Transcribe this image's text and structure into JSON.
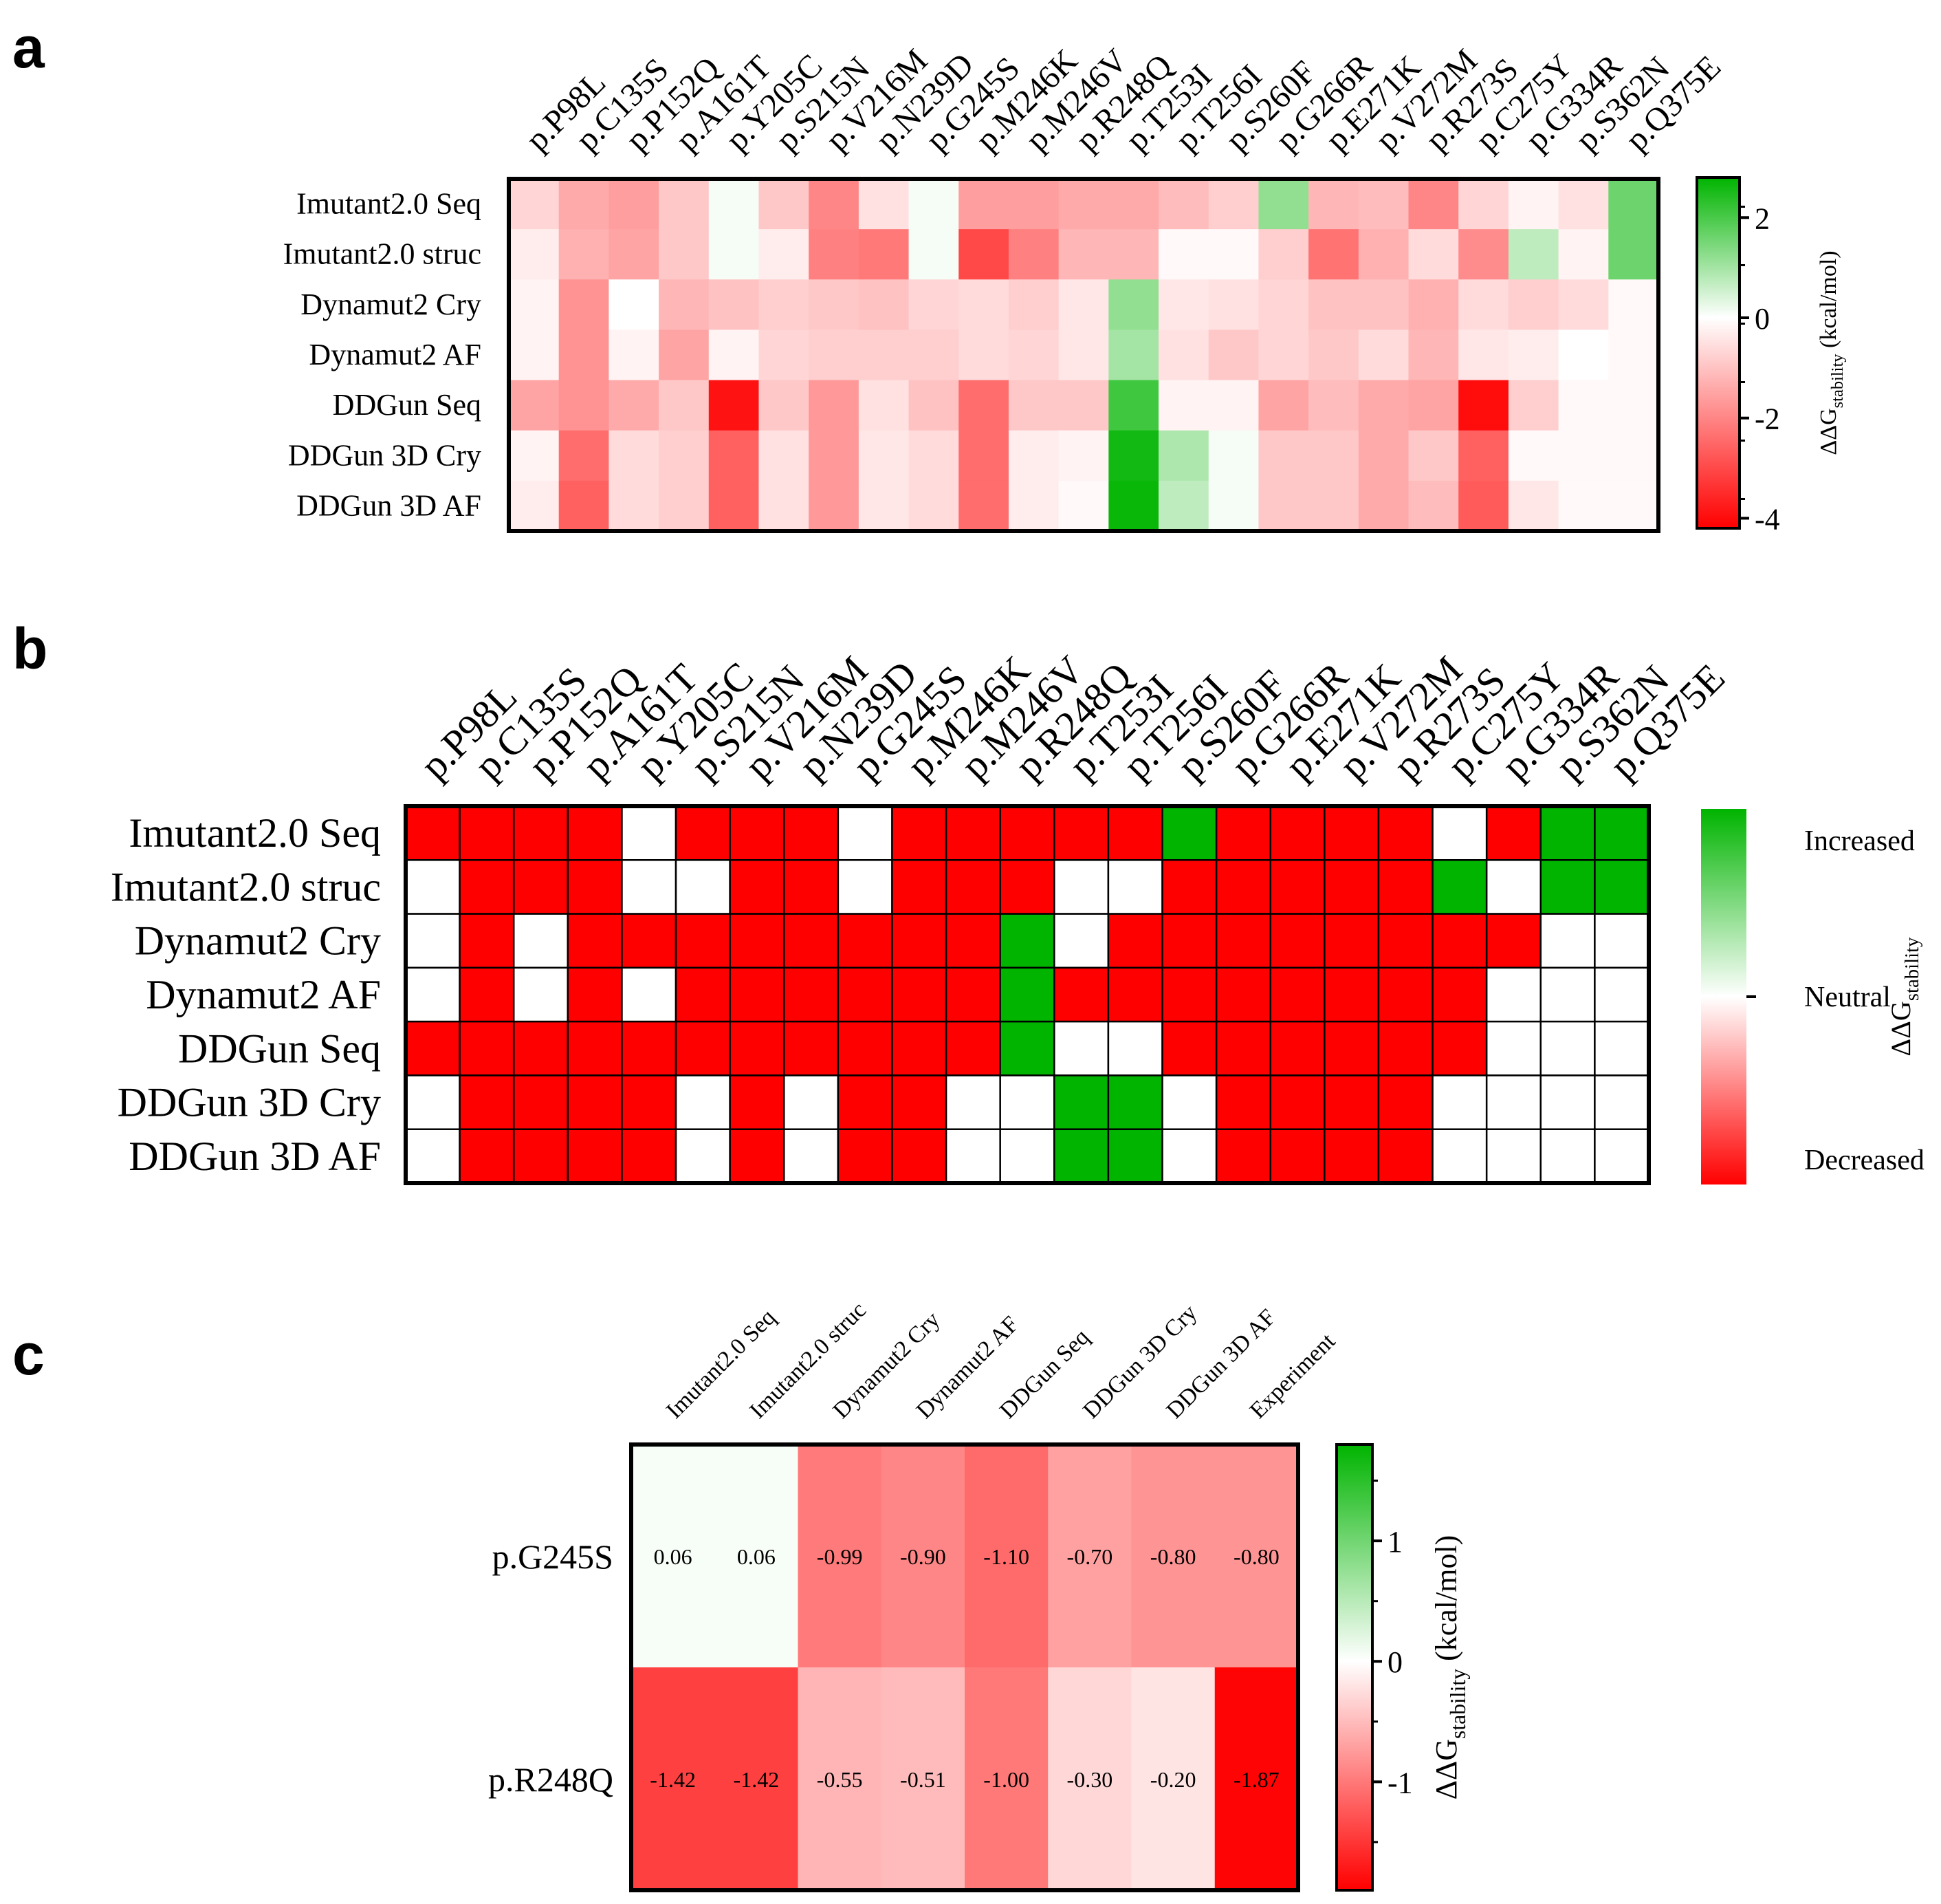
{
  "chart_data": [
    {
      "type": "heatmap",
      "panel": "a",
      "x_categories": [
        "p.P98L",
        "p.C135S",
        "p.P152Q",
        "p.A161T",
        "p.Y205C",
        "p.S215N",
        "p.V216M",
        "p.N239D",
        "p.G245S",
        "p.M246K",
        "p.M246V",
        "p.R248Q",
        "p.T253I",
        "p.T256I",
        "p.S260F",
        "p.G266R",
        "p.E271K",
        "p.V272M",
        "p.R273S",
        "p.C275Y",
        "p.G334R",
        "p.S362N",
        "p.Q375E"
      ],
      "y_categories": [
        "Imutant2.0 Seq",
        "Imutant2.0 struc",
        "Dynamut2 Cry",
        "Dynamut2 AF",
        "DDGun Seq",
        "DDGun 3D Cry",
        "DDGun 3D AF"
      ],
      "values": [
        [
          -0.7,
          -1.4,
          -1.6,
          -0.9,
          0.1,
          -0.9,
          -2.0,
          -0.5,
          0.1,
          -1.6,
          -1.6,
          -1.4,
          -1.4,
          -1.1,
          -0.8,
          1.2,
          -1.2,
          -1.1,
          -2.0,
          -0.7,
          -0.2,
          -0.5,
          1.6
        ],
        [
          -0.3,
          -1.3,
          -1.5,
          -0.9,
          0.1,
          -0.3,
          -2.1,
          -2.2,
          0.1,
          -3.0,
          -2.1,
          -1.2,
          -1.2,
          -0.1,
          -0.1,
          -0.8,
          -2.3,
          -1.3,
          -0.6,
          -1.9,
          0.7,
          -0.2,
          1.6
        ],
        [
          -0.2,
          -1.8,
          0.0,
          -1.2,
          -1.0,
          -0.8,
          -0.9,
          -1.0,
          -0.7,
          -0.6,
          -0.8,
          -0.4,
          1.2,
          -0.4,
          -0.5,
          -0.7,
          -1.0,
          -1.0,
          -1.3,
          -0.6,
          -0.8,
          -0.6,
          -0.1
        ],
        [
          -0.2,
          -1.8,
          -0.2,
          -1.5,
          -0.2,
          -0.7,
          -0.8,
          -0.8,
          -0.8,
          -0.6,
          -0.7,
          -0.4,
          1.0,
          -0.5,
          -0.9,
          -0.7,
          -0.9,
          -0.6,
          -1.2,
          -0.4,
          -0.3,
          0.0,
          -0.1
        ],
        [
          -1.5,
          -1.8,
          -1.4,
          -0.9,
          -3.9,
          -0.9,
          -1.7,
          -0.5,
          -1.0,
          -2.4,
          -0.9,
          -0.9,
          2.1,
          -0.2,
          -0.2,
          -1.5,
          -1.1,
          -1.4,
          -1.5,
          -4.0,
          -0.8,
          -0.1,
          -0.1
        ],
        [
          -0.2,
          -2.4,
          -0.6,
          -0.8,
          -2.6,
          -0.5,
          -1.7,
          -0.4,
          -0.6,
          -2.4,
          -0.3,
          -0.2,
          2.6,
          0.9,
          0.1,
          -0.9,
          -0.9,
          -1.4,
          -0.9,
          -2.6,
          -0.1,
          -0.1,
          -0.1
        ],
        [
          -0.3,
          -2.6,
          -0.6,
          -0.8,
          -2.6,
          -0.5,
          -1.7,
          -0.4,
          -0.6,
          -2.4,
          -0.3,
          -0.1,
          2.7,
          0.7,
          0.1,
          -0.9,
          -0.9,
          -1.4,
          -1.1,
          -2.7,
          -0.4,
          -0.1,
          -0.1
        ]
      ],
      "colorbar": {
        "label": "ΔΔG",
        "label_subscript": "stability",
        "label_unit": " (kcal/mol)",
        "ticks": [
          "2",
          "0",
          "-2",
          "-4"
        ],
        "tick_values": [
          2,
          0,
          -2,
          -4
        ],
        "range": [
          -4.2,
          2.8
        ]
      }
    },
    {
      "type": "heatmap",
      "panel": "b",
      "x_categories": [
        "p.P98L",
        "p.C135S",
        "p.P152Q",
        "p.A161T",
        "p.Y205C",
        "p.S215N",
        "p.V216M",
        "p.N239D",
        "p.G245S",
        "p.M246K",
        "p.M246V",
        "p.R248Q",
        "p.T253I",
        "p.T256I",
        "p.S260F",
        "p.G266R",
        "p.E271K",
        "p.V272M",
        "p.R273S",
        "p.C275Y",
        "p.G334R",
        "p.S362N",
        "p.Q375E"
      ],
      "y_categories": [
        "Imutant2.0 Seq",
        "Imutant2.0 struc",
        "Dynamut2 Cry",
        "Dynamut2 AF",
        "DDGun Seq",
        "DDGun 3D Cry",
        "DDGun 3D AF"
      ],
      "values": [
        [
          -1,
          -1,
          -1,
          -1,
          0,
          -1,
          -1,
          -1,
          0,
          -1,
          -1,
          -1,
          -1,
          -1,
          1,
          -1,
          -1,
          -1,
          -1,
          0,
          -1,
          1,
          1
        ],
        [
          0,
          -1,
          -1,
          -1,
          0,
          0,
          -1,
          -1,
          0,
          -1,
          -1,
          -1,
          0,
          0,
          -1,
          -1,
          -1,
          -1,
          -1,
          1,
          0,
          1,
          1
        ],
        [
          0,
          -1,
          0,
          -1,
          -1,
          -1,
          -1,
          -1,
          -1,
          -1,
          -1,
          1,
          0,
          -1,
          -1,
          -1,
          -1,
          -1,
          -1,
          -1,
          -1,
          0,
          0
        ],
        [
          0,
          -1,
          0,
          -1,
          0,
          -1,
          -1,
          -1,
          -1,
          -1,
          -1,
          1,
          -1,
          -1,
          -1,
          -1,
          -1,
          -1,
          -1,
          -1,
          0,
          0,
          0
        ],
        [
          -1,
          -1,
          -1,
          -1,
          -1,
          -1,
          -1,
          -1,
          -1,
          -1,
          -1,
          1,
          0,
          0,
          -1,
          -1,
          -1,
          -1,
          -1,
          -1,
          0,
          0,
          0
        ],
        [
          0,
          -1,
          -1,
          -1,
          -1,
          0,
          -1,
          0,
          -1,
          -1,
          0,
          0,
          1,
          1,
          0,
          -1,
          -1,
          -1,
          -1,
          0,
          0,
          0,
          0
        ],
        [
          0,
          -1,
          -1,
          -1,
          -1,
          0,
          -1,
          0,
          -1,
          -1,
          0,
          0,
          1,
          1,
          0,
          -1,
          -1,
          -1,
          -1,
          0,
          0,
          0,
          0
        ]
      ],
      "colorbar": {
        "label": "ΔΔG",
        "label_subscript": "stability",
        "ticks": [
          "Increased",
          "Neutral",
          "Decreased"
        ],
        "tick_values": [
          1,
          0,
          -1
        ]
      }
    },
    {
      "type": "heatmap",
      "panel": "c",
      "x_categories": [
        "Imutant2.0 Seq",
        "Imutant2.0 struc",
        "Dynamut2 Cry",
        "Dynamut2 AF",
        "DDGun Seq",
        "DDGun 3D Cry",
        "DDGun 3D AF",
        "Experiment"
      ],
      "y_categories": [
        "p.G245S",
        "p.R248Q"
      ],
      "values": [
        [
          0.06,
          0.06,
          -0.99,
          -0.9,
          -1.1,
          -0.7,
          -0.8,
          -0.8
        ],
        [
          -1.42,
          -1.42,
          -0.55,
          -0.51,
          -1.0,
          -0.3,
          -0.2,
          -1.87
        ]
      ],
      "cell_labels": [
        [
          "0.06",
          "0.06",
          "-0.99",
          "-0.90",
          "-1.10",
          "-0.70",
          "-0.80",
          "-0.80"
        ],
        [
          "-1.42",
          "-1.42",
          "-0.55",
          "-0.51",
          "-1.00",
          "-0.30",
          "-0.20",
          "-1.87"
        ]
      ],
      "colorbar": {
        "label": "ΔΔG",
        "label_subscript": "stability",
        "label_unit": " (kcal/mol)",
        "ticks": [
          "1",
          "0",
          "-1"
        ],
        "tick_values": [
          1,
          0,
          -1
        ],
        "range": [
          -1.9,
          1.8
        ]
      }
    }
  ],
  "panel_letters": [
    "a",
    "b",
    "c"
  ],
  "colors": {
    "neg": "#ff0000",
    "zero": "#ffffff",
    "pos": "#00b400",
    "grid": "#000000"
  }
}
